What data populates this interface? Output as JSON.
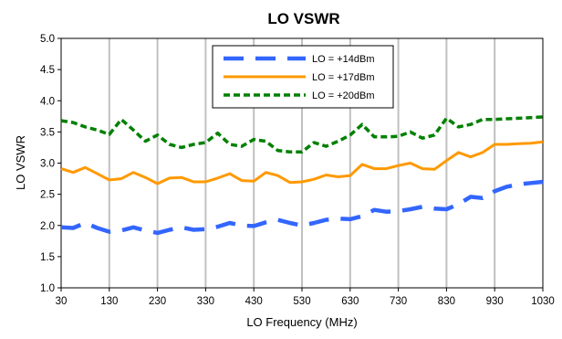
{
  "chart_data": {
    "type": "line",
    "title": "LO VSWR",
    "xlabel": "LO Frequency (MHz)",
    "ylabel": "LO VSWR",
    "xlim": [
      30,
      1030
    ],
    "ylim": [
      1.0,
      5.0
    ],
    "xticks": [
      30,
      130,
      230,
      330,
      430,
      530,
      630,
      730,
      830,
      930,
      1030
    ],
    "yticks": [
      "1.0",
      "1.5",
      "2.0",
      "2.5",
      "3.0",
      "3.5",
      "4.0",
      "4.5",
      "5.0"
    ],
    "grid": "vertical",
    "legend_position": "top-center",
    "series": [
      {
        "name": "LO = +14dBm",
        "color": "#3366ff",
        "style": "long-dash",
        "x": [
          30,
          55,
          80,
          105,
          130,
          155,
          180,
          205,
          230,
          255,
          280,
          305,
          330,
          355,
          380,
          405,
          430,
          455,
          480,
          505,
          530,
          555,
          580,
          605,
          630,
          655,
          680,
          705,
          730,
          755,
          780,
          805,
          830,
          855,
          880,
          905,
          930,
          955,
          980,
          1005,
          1030
        ],
        "y": [
          1.97,
          1.96,
          2.04,
          1.96,
          1.9,
          1.92,
          1.97,
          1.92,
          1.88,
          1.93,
          1.97,
          1.93,
          1.94,
          1.98,
          2.04,
          2.0,
          1.99,
          2.05,
          2.09,
          2.04,
          2.0,
          2.04,
          2.09,
          2.11,
          2.1,
          2.15,
          2.25,
          2.22,
          2.23,
          2.26,
          2.3,
          2.27,
          2.26,
          2.34,
          2.46,
          2.44,
          2.55,
          2.62,
          2.66,
          2.68,
          2.7
        ]
      },
      {
        "name": "LO = +17dBm",
        "color": "#ff9900",
        "style": "solid",
        "x": [
          30,
          55,
          80,
          105,
          130,
          155,
          180,
          205,
          230,
          255,
          280,
          305,
          330,
          355,
          380,
          405,
          430,
          455,
          480,
          505,
          530,
          555,
          580,
          605,
          630,
          655,
          680,
          705,
          730,
          755,
          780,
          805,
          830,
          855,
          880,
          905,
          930,
          955,
          980,
          1005,
          1030
        ],
        "y": [
          2.91,
          2.85,
          2.93,
          2.83,
          2.73,
          2.75,
          2.85,
          2.77,
          2.67,
          2.76,
          2.77,
          2.7,
          2.7,
          2.76,
          2.83,
          2.72,
          2.71,
          2.85,
          2.8,
          2.69,
          2.7,
          2.74,
          2.81,
          2.78,
          2.8,
          2.98,
          2.91,
          2.91,
          2.96,
          3.0,
          2.91,
          2.9,
          3.04,
          3.17,
          3.1,
          3.17,
          3.3,
          3.3,
          3.31,
          3.32,
          3.34
        ]
      },
      {
        "name": "LO = +20dBm",
        "color": "#008000",
        "style": "short-dash",
        "x": [
          30,
          55,
          80,
          105,
          130,
          155,
          180,
          205,
          230,
          255,
          280,
          305,
          330,
          355,
          380,
          405,
          430,
          455,
          480,
          505,
          530,
          555,
          580,
          605,
          630,
          655,
          680,
          705,
          730,
          755,
          780,
          805,
          830,
          855,
          880,
          905,
          930,
          955,
          980,
          1005,
          1030
        ],
        "y": [
          3.68,
          3.65,
          3.58,
          3.53,
          3.46,
          3.7,
          3.53,
          3.35,
          3.45,
          3.3,
          3.25,
          3.3,
          3.33,
          3.48,
          3.3,
          3.27,
          3.38,
          3.35,
          3.2,
          3.18,
          3.18,
          3.33,
          3.27,
          3.35,
          3.45,
          3.62,
          3.42,
          3.42,
          3.43,
          3.5,
          3.4,
          3.45,
          3.72,
          3.58,
          3.62,
          3.7,
          3.7,
          3.71,
          3.72,
          3.73,
          3.74
        ]
      }
    ]
  }
}
